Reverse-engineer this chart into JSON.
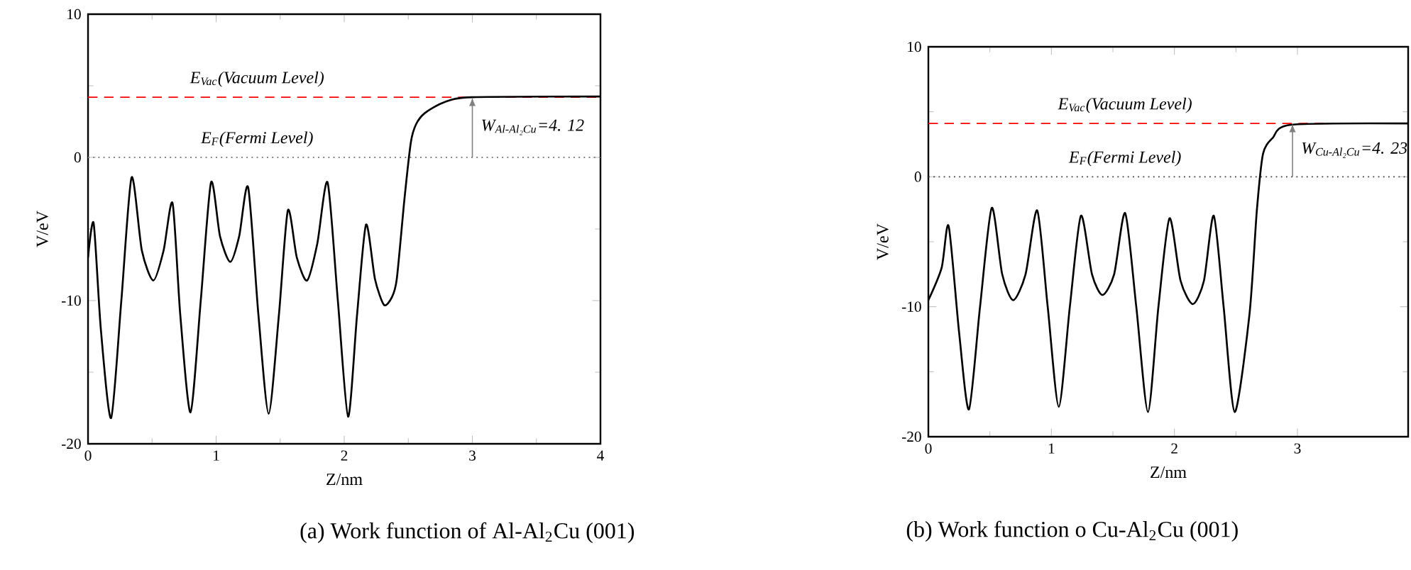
{
  "chart_data": [
    {
      "type": "line",
      "title": "(a) Work function of Al-Al$_{2}$Cu (001)",
      "xlabel": "Z/nm",
      "ylabel": "V/eV",
      "color": "#000000",
      "x": [
        0,
        0.044,
        0.1,
        0.18,
        0.26,
        0.34,
        0.42,
        0.51,
        0.59,
        0.66,
        0.72,
        0.8,
        0.88,
        0.96,
        1.03,
        1.11,
        1.18,
        1.25,
        1.33,
        1.41,
        1.49,
        1.56,
        1.63,
        1.71,
        1.79,
        1.87,
        1.95,
        2.03,
        2.1,
        2.17,
        2.24,
        2.31,
        2.37,
        2.41,
        2.47,
        2.52,
        2.56,
        2.63,
        2.78,
        3.0,
        4.0
      ],
      "values": [
        -7,
        -4.6,
        -12,
        -18.2,
        -10,
        -1.4,
        -6.5,
        -8.6,
        -6.5,
        -3.2,
        -11,
        -17.8,
        -10,
        -1.75,
        -5.5,
        -7.3,
        -5.5,
        -2.1,
        -11,
        -17.9,
        -11,
        -3.7,
        -7,
        -8.6,
        -6,
        -1.75,
        -10,
        -18.1,
        -11,
        -4.7,
        -8.5,
        -10.3,
        -9.8,
        -8.5,
        -2.9,
        1.05,
        2.3,
        3.1,
        3.85,
        4.2,
        4.25
      ],
      "xlim": [
        0,
        4
      ],
      "ylim": [
        -20,
        10
      ],
      "xticks": [
        0,
        1,
        2,
        3,
        4
      ],
      "yticks": [
        -20,
        -10,
        0,
        10
      ],
      "ref_lines": [
        {
          "axis": "y",
          "value": 4.2,
          "label": "E$_{Vac}$(Vacuum Level)",
          "color": "#ff0000",
          "line_style": "dashed"
        },
        {
          "axis": "y",
          "value": 0,
          "label": "E$_{F}$(Fermi Level)",
          "color": "#808080",
          "line_style": "dotted"
        }
      ],
      "annotations": [
        {
          "text": "W$_{Al-Al₂Cu}$=4. 12",
          "x": 3,
          "y": 4.2
        }
      ]
    },
    {
      "type": "line",
      "title": "(b) Work function o Cu-Al$_{2}$Cu (001)",
      "xlabel": "Z/nm",
      "ylabel": "V/eV",
      "color": "#000000",
      "x": [
        0,
        0.108,
        0.165,
        0.25,
        0.33,
        0.42,
        0.515,
        0.6,
        0.69,
        0.79,
        0.885,
        0.97,
        1.06,
        1.15,
        1.24,
        1.33,
        1.415,
        1.51,
        1.6,
        1.69,
        1.785,
        1.87,
        1.96,
        2.05,
        2.15,
        2.24,
        2.32,
        2.4,
        2.49,
        2.61,
        2.67,
        2.72,
        2.8,
        2.95,
        3.9
      ],
      "values": [
        -9.5,
        -7,
        -3.8,
        -12,
        -17.9,
        -10,
        -2.4,
        -7.5,
        -9.5,
        -7.5,
        -2.6,
        -10,
        -17.7,
        -10,
        -3,
        -7.5,
        -9.1,
        -7.5,
        -2.8,
        -10,
        -18.1,
        -10,
        -3.2,
        -8,
        -9.8,
        -8,
        -3,
        -10,
        -18.1,
        -10.6,
        -2.6,
        1.75,
        3,
        4,
        4.1
      ],
      "xlim": [
        0,
        3.9
      ],
      "ylim": [
        -20,
        10
      ],
      "xticks": [
        0,
        1,
        2,
        3
      ],
      "yticks": [
        -20,
        -10,
        0,
        10
      ],
      "ref_lines": [
        {
          "axis": "y",
          "value": 4.1,
          "label": "E$_{Vac}$(Vacuum Level)",
          "color": "#ff0000",
          "line_style": "dashed"
        },
        {
          "axis": "y",
          "value": 0,
          "label": "E$_{F}$(Fermi Level)",
          "color": "#404040",
          "line_style": "dotted"
        }
      ],
      "annotations": [
        {
          "text": "W$_{Cu-Al₂Cu}$=4. 23",
          "x": 2.96,
          "y": 4.1
        }
      ]
    }
  ]
}
